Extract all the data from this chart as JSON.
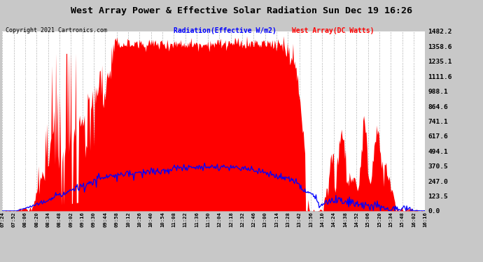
{
  "title": "West Array Power & Effective Solar Radiation Sun Dec 19 16:26",
  "copyright": "Copyright 2021 Cartronics.com",
  "legend_radiation": "Radiation(Effective W/m2)",
  "legend_west": "West Array(DC Watts)",
  "bg_color": "#c8c8c8",
  "plot_bg_color": "#ffffff",
  "grid_color": "#999999",
  "red_color": "#ff0000",
  "blue_color": "#0000ff",
  "title_color": "#000000",
  "copyright_color": "#000000",
  "radiation_legend_color": "#0000ff",
  "west_legend_color": "#ff0000",
  "yticks": [
    0.0,
    123.5,
    247.0,
    370.5,
    494.1,
    617.6,
    741.1,
    864.6,
    988.1,
    1111.6,
    1235.1,
    1358.6,
    1482.2
  ],
  "ymax": 1482.2,
  "ymin": 0.0,
  "xtick_labels": [
    "07:24",
    "07:52",
    "08:06",
    "08:20",
    "08:34",
    "08:48",
    "09:02",
    "09:16",
    "09:30",
    "09:44",
    "09:58",
    "10:12",
    "10:26",
    "10:40",
    "10:54",
    "11:08",
    "11:22",
    "11:36",
    "11:50",
    "12:04",
    "12:18",
    "12:32",
    "12:46",
    "13:00",
    "13:14",
    "13:28",
    "13:42",
    "13:56",
    "14:10",
    "14:24",
    "14:38",
    "14:52",
    "15:06",
    "15:20",
    "15:34",
    "15:48",
    "16:02",
    "16:16"
  ]
}
